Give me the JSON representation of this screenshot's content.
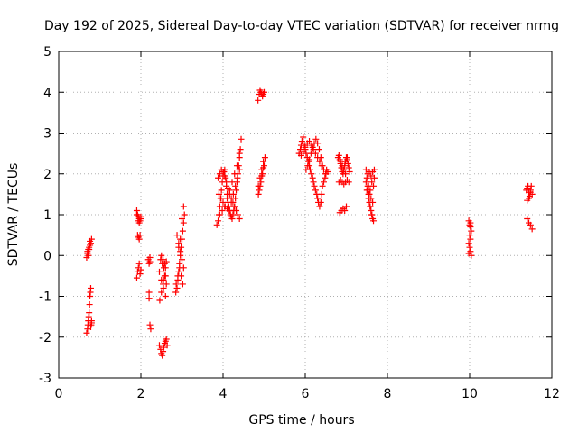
{
  "chart_data": {
    "type": "scatter",
    "title": "Day 192 of 2025, Sidereal Day-to-day VTEC variation (SDTVAR) for receiver nrmg",
    "xlabel": "GPS time / hours",
    "ylabel": "SDTVAR / TECUs",
    "xlim": [
      0,
      12
    ],
    "ylim": [
      -3,
      5
    ],
    "xticks": [
      "0",
      "2",
      "4",
      "6",
      "8",
      "10",
      "12"
    ],
    "yticks": [
      "-3",
      "-2",
      "-1",
      "0",
      "1",
      "2",
      "3",
      "4",
      "5"
    ],
    "grid": true,
    "marker": "+",
    "color": "#ff0000",
    "series": [
      {
        "x": [
          0.68,
          0.7,
          0.71,
          0.72,
          0.73,
          0.74,
          0.75,
          0.76,
          0.77,
          0.78,
          0.79,
          0.8,
          0.68,
          0.7,
          0.72,
          0.74,
          0.76,
          0.78,
          0.8,
          0.7,
          0.72,
          0.74,
          0.76,
          0.78,
          0.8,
          1.9,
          1.92,
          1.94,
          1.96,
          1.98,
          2.0,
          1.92,
          1.94,
          1.96,
          1.98,
          1.9,
          1.92,
          1.94,
          1.96,
          1.98,
          2.0,
          1.9,
          1.93,
          1.96,
          2.0,
          2.18,
          2.22,
          2.2,
          2.2,
          2.22,
          2.24,
          2.2,
          2.22,
          2.45,
          2.48,
          2.5,
          2.52,
          2.54,
          2.56,
          2.58,
          2.6,
          2.62,
          2.64,
          2.45,
          2.5,
          2.55,
          2.6,
          2.48,
          2.52,
          2.56,
          2.6,
          2.62,
          2.46,
          2.5,
          2.54,
          2.58,
          2.5,
          2.54,
          2.58,
          2.62,
          2.55,
          2.6,
          2.85,
          2.88,
          2.9,
          2.92,
          2.94,
          2.96,
          2.98,
          3.0,
          3.02,
          3.04,
          3.06,
          2.88,
          2.92,
          2.96,
          3.0,
          3.04,
          2.86,
          2.9,
          2.94,
          2.98,
          3.02,
          2.92,
          2.96,
          3.0,
          3.04,
          3.85,
          3.88,
          3.9,
          3.92,
          3.94,
          3.96,
          3.98,
          4.0,
          4.02,
          4.04,
          4.06,
          4.08,
          4.1,
          4.12,
          4.14,
          4.16,
          4.18,
          4.2,
          4.22,
          4.24,
          4.26,
          4.28,
          4.3,
          4.32,
          4.34,
          4.36,
          4.38,
          4.4,
          4.42,
          4.44,
          3.88,
          3.92,
          3.96,
          4.0,
          4.04,
          4.08,
          4.12,
          4.16,
          4.2,
          4.24,
          4.28,
          4.32,
          4.36,
          4.4,
          3.9,
          3.95,
          4.0,
          4.05,
          4.1,
          4.15,
          4.2,
          4.25,
          4.3,
          4.35,
          4.4,
          3.92,
          3.98,
          4.04,
          4.1,
          4.16,
          4.22,
          4.28,
          4.34,
          4.4,
          4.85,
          4.88,
          4.9,
          4.92,
          4.94,
          4.96,
          4.98,
          5.0,
          4.88,
          4.92,
          4.96,
          5.0,
          4.86,
          4.9,
          4.94,
          4.98,
          4.86,
          4.9,
          4.94,
          4.98,
          5.02,
          5.85,
          5.88,
          5.9,
          5.92,
          5.95,
          5.98,
          6.0,
          6.02,
          6.05,
          6.08,
          6.1,
          6.12,
          6.15,
          6.18,
          6.2,
          6.22,
          6.25,
          6.28,
          6.3,
          6.32,
          6.35,
          6.38,
          6.4,
          6.42,
          6.45,
          6.48,
          6.5,
          6.52,
          6.55,
          5.9,
          5.95,
          6.0,
          6.05,
          6.1,
          6.15,
          6.2,
          6.25,
          6.3,
          6.35,
          6.4,
          6.45,
          6.5,
          6.02,
          6.06,
          6.1,
          6.14,
          6.18,
          6.22,
          6.26,
          6.3,
          6.34,
          6.38,
          6.42,
          6.8,
          6.82,
          6.84,
          6.86,
          6.88,
          6.9,
          6.92,
          6.94,
          6.96,
          6.98,
          7.0,
          7.02,
          7.04,
          7.06,
          7.08,
          6.82,
          6.86,
          6.9,
          6.94,
          6.98,
          7.02,
          7.06,
          6.84,
          6.88,
          6.92,
          6.96,
          7.0,
          6.86,
          6.9,
          6.94,
          6.98,
          7.02,
          7.48,
          7.5,
          7.52,
          7.54,
          7.56,
          7.58,
          7.6,
          7.62,
          7.64,
          7.66,
          7.68,
          7.5,
          7.54,
          7.58,
          7.62,
          7.66,
          7.48,
          7.52,
          7.56,
          7.6,
          7.64,
          7.52,
          7.56,
          7.6,
          7.64,
          7.68,
          7.54,
          7.58,
          7.62,
          9.98,
          10.0,
          10.02,
          10.04,
          10.0,
          10.02,
          9.98,
          10.0,
          10.02,
          10.04,
          9.98,
          10.02,
          11.38,
          11.4,
          11.42,
          11.44,
          11.46,
          11.48,
          11.5,
          11.52,
          11.4,
          11.44,
          11.48,
          11.52,
          11.4,
          11.44,
          11.48
        ],
        "y": [
          -1.9,
          -1.8,
          -1.7,
          -1.6,
          -1.5,
          -1.4,
          -1.2,
          -1.0,
          -0.9,
          -0.8,
          -1.7,
          -1.6,
          -0.05,
          0.05,
          0.15,
          0.2,
          0.25,
          0.3,
          0.4,
          0.1,
          0.0,
          0.15,
          0.35,
          -1.75,
          -1.65,
          1.1,
          1.0,
          0.95,
          0.9,
          0.85,
          0.95,
          0.5,
          0.45,
          0.4,
          0.5,
          -0.55,
          -0.4,
          -0.3,
          -0.2,
          -0.45,
          -0.35,
          1.0,
          0.85,
          0.8,
          0.9,
          -0.1,
          -0.15,
          -0.9,
          -1.05,
          -1.7,
          -1.8,
          -0.2,
          -0.05,
          -2.2,
          -2.3,
          -2.4,
          -2.45,
          -2.35,
          -2.25,
          -2.15,
          -2.1,
          -2.05,
          -2.2,
          -0.4,
          -0.6,
          -0.8,
          -1.0,
          -0.1,
          -0.2,
          -0.3,
          -0.5,
          -0.7,
          -1.1,
          -0.9,
          -0.7,
          -0.5,
          0.0,
          -0.1,
          -0.2,
          -0.15,
          -0.6,
          -0.3,
          -0.9,
          -0.8,
          -0.6,
          -0.4,
          -0.2,
          0.0,
          0.2,
          0.4,
          0.6,
          0.8,
          1.0,
          0.5,
          0.3,
          0.1,
          -0.1,
          -0.3,
          -0.7,
          -0.5,
          -0.3,
          -0.5,
          -0.7,
          0.2,
          0.4,
          0.9,
          1.2,
          0.75,
          0.85,
          1.0,
          1.2,
          1.4,
          1.6,
          1.8,
          1.95,
          2.05,
          2.1,
          1.9,
          1.7,
          1.5,
          1.3,
          1.2,
          1.1,
          1.0,
          0.95,
          0.9,
          1.0,
          1.1,
          1.2,
          1.4,
          1.6,
          1.8,
          2.0,
          2.2,
          2.4,
          2.6,
          2.85,
          1.9,
          2.0,
          2.1,
          2.05,
          1.95,
          1.8,
          1.65,
          1.5,
          1.4,
          1.3,
          1.2,
          1.1,
          1.0,
          0.9,
          1.5,
          1.4,
          1.3,
          1.2,
          1.15,
          1.1,
          1.3,
          1.5,
          1.7,
          1.9,
          2.1,
          1.0,
          1.1,
          1.2,
          1.4,
          1.6,
          1.8,
          2.0,
          2.2,
          2.5,
          3.8,
          3.95,
          4.05,
          4.0,
          3.95,
          3.9,
          3.95,
          4.0,
          1.6,
          1.8,
          2.0,
          2.2,
          1.7,
          1.9,
          2.1,
          2.3,
          1.5,
          1.7,
          1.95,
          2.15,
          2.4,
          2.5,
          2.6,
          2.7,
          2.8,
          2.9,
          2.7,
          2.6,
          2.5,
          2.4,
          2.3,
          2.2,
          2.1,
          2.0,
          1.9,
          1.8,
          1.7,
          1.6,
          1.5,
          1.4,
          1.3,
          1.2,
          1.3,
          1.5,
          1.7,
          1.8,
          1.9,
          2.0,
          2.1,
          2.05,
          2.45,
          2.55,
          2.65,
          2.75,
          2.8,
          2.7,
          2.6,
          2.5,
          2.4,
          2.3,
          2.2,
          2.1,
          2.0,
          2.1,
          2.2,
          2.35,
          2.5,
          2.65,
          2.75,
          2.85,
          2.75,
          2.6,
          2.4,
          2.2,
          2.4,
          2.45,
          2.35,
          2.25,
          2.15,
          2.05,
          2.0,
          2.1,
          2.2,
          2.3,
          2.4,
          2.35,
          2.25,
          2.15,
          2.05,
          1.8,
          1.85,
          1.8,
          1.75,
          1.8,
          1.85,
          1.8,
          1.05,
          1.1,
          1.15,
          1.1,
          1.2,
          2.3,
          2.2,
          2.1,
          2.0,
          2.4,
          2.1,
          1.9,
          1.7,
          1.5,
          1.3,
          1.2,
          1.1,
          1.0,
          0.9,
          1.7,
          1.9,
          1.6,
          1.4,
          1.2,
          1.0,
          0.85,
          1.8,
          1.6,
          1.5,
          1.4,
          1.3,
          2.0,
          2.05,
          1.95,
          2.05,
          2.1,
          1.7,
          1.6,
          1.8,
          0.05,
          0.2,
          0.4,
          0.6,
          0.75,
          0.8,
          0.3,
          0.5,
          0.1,
          0.0,
          0.85,
          0.7,
          1.6,
          1.65,
          1.7,
          1.55,
          1.45,
          1.6,
          1.7,
          1.5,
          0.9,
          0.8,
          0.75,
          0.65,
          1.35,
          1.4,
          1.55
        ]
      }
    ]
  }
}
